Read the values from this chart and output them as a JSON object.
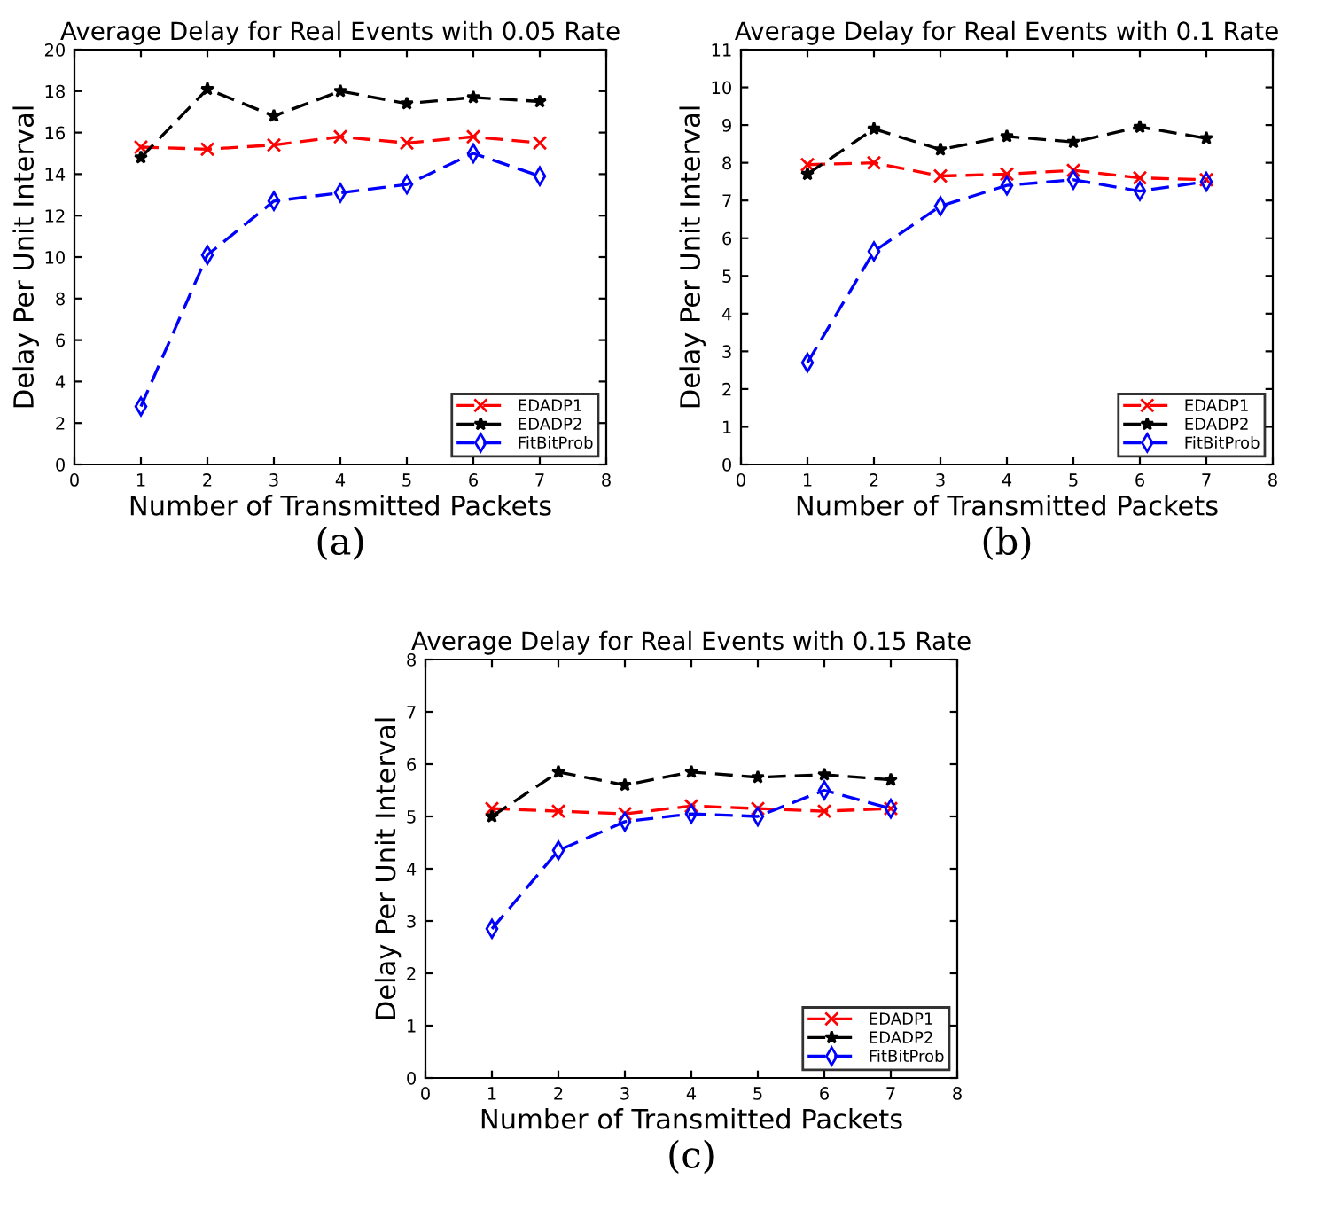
{
  "chart_data": [
    {
      "type": "line",
      "title": "Average Delay for Real Events with 0.05 Rate",
      "xlabel": "Number of Transmitted Packets",
      "ylabel": "Delay Per Unit Interval",
      "annotations": [
        "(a)"
      ],
      "x": [
        1,
        2,
        3,
        4,
        5,
        6,
        7
      ],
      "xlim": [
        0,
        8
      ],
      "xticks": [
        0,
        1,
        2,
        3,
        4,
        5,
        6,
        7,
        8
      ],
      "ylim": [
        0,
        20
      ],
      "yticks": [
        0,
        2,
        4,
        6,
        8,
        10,
        12,
        14,
        16,
        18,
        20
      ],
      "legend": "bottom right",
      "grid": false,
      "line_style": "dashed",
      "series": [
        {
          "name": "EDADP1",
          "color": "#ff0000",
          "marker": "cross",
          "values": [
            15.3,
            15.2,
            15.4,
            15.8,
            15.5,
            15.8,
            15.5
          ]
        },
        {
          "name": "EDADP2",
          "color": "#000000",
          "marker": "star",
          "values": [
            14.8,
            18.1,
            16.8,
            18.0,
            17.4,
            17.7,
            17.5
          ]
        },
        {
          "name": "FitBitProb",
          "color": "#0000ff",
          "marker": "diamond",
          "values": [
            2.8,
            10.1,
            12.7,
            13.1,
            13.5,
            15.0,
            13.9
          ]
        }
      ]
    },
    {
      "type": "line",
      "title": "Average Delay for Real Events with 0.1 Rate",
      "xlabel": "Number of Transmitted Packets",
      "ylabel": "Delay Per Unit Interval",
      "annotations": [
        "(b)"
      ],
      "x": [
        1,
        2,
        3,
        4,
        5,
        6,
        7
      ],
      "xlim": [
        0,
        8
      ],
      "xticks": [
        0,
        1,
        2,
        3,
        4,
        5,
        6,
        7,
        8
      ],
      "ylim": [
        0,
        11
      ],
      "yticks": [
        0,
        1,
        2,
        3,
        4,
        5,
        6,
        7,
        8,
        9,
        10,
        11
      ],
      "legend": "bottom right",
      "grid": false,
      "line_style": "dashed",
      "series": [
        {
          "name": "EDADP1",
          "color": "#ff0000",
          "marker": "cross",
          "values": [
            7.95,
            8.0,
            7.65,
            7.7,
            7.8,
            7.6,
            7.55
          ]
        },
        {
          "name": "EDADP2",
          "color": "#000000",
          "marker": "star",
          "values": [
            7.7,
            8.9,
            8.35,
            8.7,
            8.55,
            8.95,
            8.65
          ]
        },
        {
          "name": "FitBitProb",
          "color": "#0000ff",
          "marker": "diamond",
          "values": [
            2.7,
            5.65,
            6.85,
            7.4,
            7.55,
            7.25,
            7.5
          ]
        }
      ]
    },
    {
      "type": "line",
      "title": "Average Delay for Real Events with 0.15 Rate",
      "xlabel": "Number of Transmitted Packets",
      "ylabel": "Delay Per Unit Interval",
      "annotations": [
        "(c)"
      ],
      "x": [
        1,
        2,
        3,
        4,
        5,
        6,
        7
      ],
      "xlim": [
        0,
        8
      ],
      "xticks": [
        0,
        1,
        2,
        3,
        4,
        5,
        6,
        7,
        8
      ],
      "ylim": [
        0,
        8
      ],
      "yticks": [
        0,
        1,
        2,
        3,
        4,
        5,
        6,
        7,
        8
      ],
      "legend": "bottom right",
      "grid": false,
      "line_style": "dashed",
      "series": [
        {
          "name": "EDADP1",
          "color": "#ff0000",
          "marker": "cross",
          "values": [
            5.15,
            5.1,
            5.05,
            5.2,
            5.15,
            5.1,
            5.15
          ]
        },
        {
          "name": "EDADP2",
          "color": "#000000",
          "marker": "star",
          "values": [
            5.0,
            5.85,
            5.6,
            5.85,
            5.75,
            5.8,
            5.7
          ]
        },
        {
          "name": "FitBitProb",
          "color": "#0000ff",
          "marker": "diamond",
          "values": [
            2.85,
            4.35,
            4.9,
            5.05,
            5.0,
            5.5,
            5.15
          ]
        }
      ]
    }
  ]
}
